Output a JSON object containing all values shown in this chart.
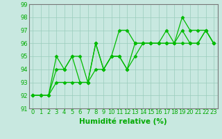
{
  "xlabel": "Humidité relative (%)",
  "xlim": [
    -0.5,
    23.5
  ],
  "ylim": [
    91,
    99
  ],
  "yticks": [
    91,
    92,
    93,
    94,
    95,
    96,
    97,
    98,
    99
  ],
  "xticks": [
    0,
    1,
    2,
    3,
    4,
    5,
    6,
    7,
    8,
    9,
    10,
    11,
    12,
    13,
    14,
    15,
    16,
    17,
    18,
    19,
    20,
    21,
    22,
    23
  ],
  "bg_color": "#c8e8e0",
  "line_color": "#00bb00",
  "grid_color": "#99ccbb",
  "series": [
    [
      92,
      92,
      92,
      95,
      94,
      95,
      95,
      93,
      94,
      94,
      95,
      97,
      97,
      96,
      96,
      96,
      96,
      97,
      96,
      98,
      97,
      97,
      97,
      96
    ],
    [
      92,
      92,
      92,
      94,
      94,
      95,
      93,
      93,
      96,
      94,
      95,
      95,
      94,
      96,
      96,
      96,
      96,
      96,
      96,
      97,
      96,
      96,
      97,
      96
    ],
    [
      92,
      92,
      92,
      93,
      93,
      93,
      93,
      93,
      96,
      94,
      95,
      95,
      94,
      95,
      96,
      96,
      96,
      96,
      96,
      96,
      96,
      96,
      97,
      96
    ]
  ],
  "marker": "D",
  "marker_size": 2.5,
  "line_width": 0.9,
  "tick_fontsize": 6,
  "xlabel_fontsize": 7.5,
  "tick_color": "#00aa00",
  "xlabel_color": "#00aa00",
  "spine_color": "#777777"
}
